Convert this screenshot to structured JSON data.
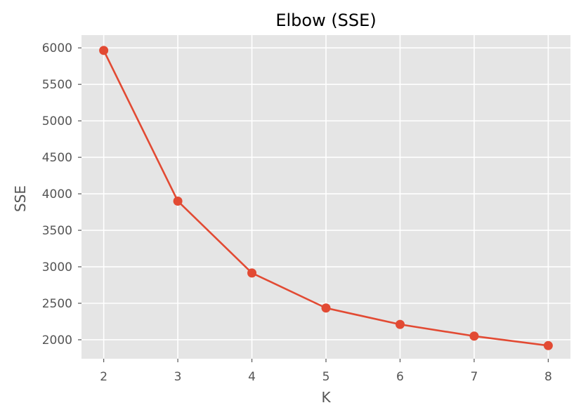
{
  "chart_data": {
    "type": "line",
    "title": "Elbow (SSE)",
    "xlabel": "K",
    "ylabel": "SSE",
    "x": [
      2,
      3,
      4,
      5,
      6,
      7,
      8
    ],
    "series": [
      {
        "values": [
          5965,
          3900,
          2915,
          2435,
          2210,
          2050,
          1920
        ],
        "color": "#E24A33"
      }
    ],
    "xlim": [
      1.7,
      8.3
    ],
    "ylim": [
      1740,
      6175
    ],
    "xticks": [
      2,
      3,
      4,
      5,
      6,
      7,
      8
    ],
    "yticks": [
      2000,
      2500,
      3000,
      3500,
      4000,
      4500,
      5000,
      5500,
      6000
    ],
    "grid": true,
    "marker": "circle",
    "background_color": "#E5E5E5",
    "grid_color": "#FFFFFF"
  }
}
